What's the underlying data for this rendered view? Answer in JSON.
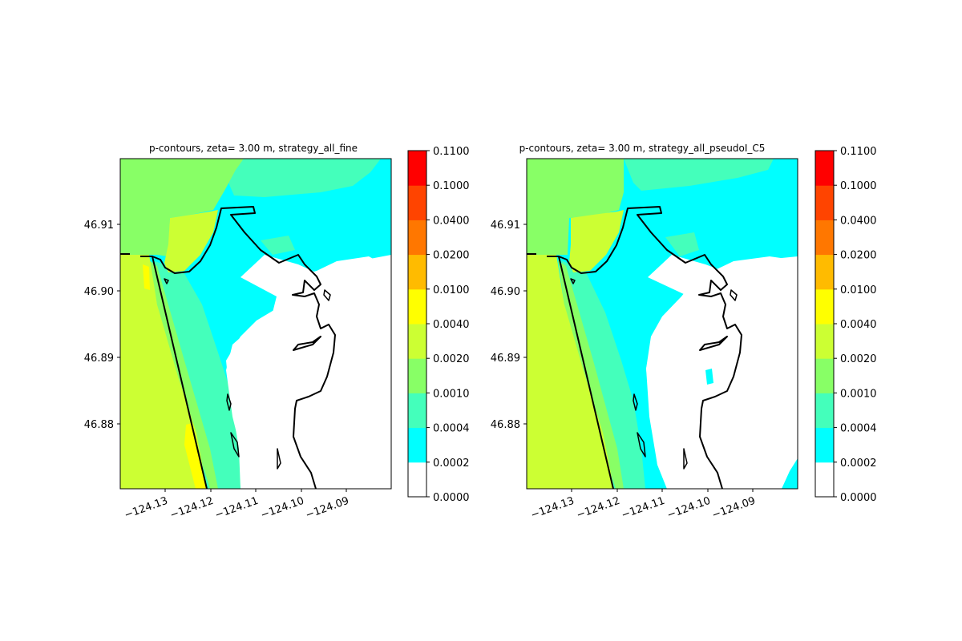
{
  "chart_data": [
    {
      "type": "heatmap",
      "title": "p-contours, zeta= 3.00 m, strategy_all_fine",
      "xlabel": "",
      "ylabel": "",
      "xlim": [
        -124.14,
        -124.08
      ],
      "ylim": [
        46.8702,
        46.9196
      ],
      "x_ticks": [
        "−124.13",
        "−124.12",
        "−124.11",
        "−124.10",
        "−124.09"
      ],
      "y_ticks": [
        "46.91",
        "46.90",
        "46.89",
        "46.88"
      ],
      "colorbar": {
        "levels": [
          "0.0000",
          "0.0002",
          "0.0004",
          "0.0010",
          "0.0020",
          "0.0040",
          "0.0100",
          "0.0200",
          "0.0400",
          "0.1000",
          "0.1100"
        ],
        "colors": [
          "#ffffff",
          "#00ffff",
          "#44ffbb",
          "#88ff66",
          "#ccff33",
          "#ffff00",
          "#ffbb00",
          "#ff7700",
          "#ff4400",
          "#ff0000"
        ]
      }
    },
    {
      "type": "heatmap",
      "title": "p-contours, zeta= 3.00 m, strategy_all_pseudoI_C5",
      "xlabel": "",
      "ylabel": "",
      "xlim": [
        -124.14,
        -124.08
      ],
      "ylim": [
        46.8702,
        46.9196
      ],
      "x_ticks": [
        "−124.13",
        "−124.12",
        "−124.11",
        "−124.10",
        "−124.09"
      ],
      "y_ticks": [
        "46.91",
        "46.90",
        "46.89",
        "46.88"
      ],
      "colorbar": {
        "levels": [
          "0.0000",
          "0.0002",
          "0.0004",
          "0.0010",
          "0.0020",
          "0.0040",
          "0.0100",
          "0.0200",
          "0.0400",
          "0.1000",
          "0.1100"
        ],
        "colors": [
          "#ffffff",
          "#00ffff",
          "#44ffbb",
          "#88ff66",
          "#ccff33",
          "#ffff00",
          "#ffbb00",
          "#ff7700",
          "#ff4400",
          "#ff0000"
        ]
      }
    }
  ]
}
